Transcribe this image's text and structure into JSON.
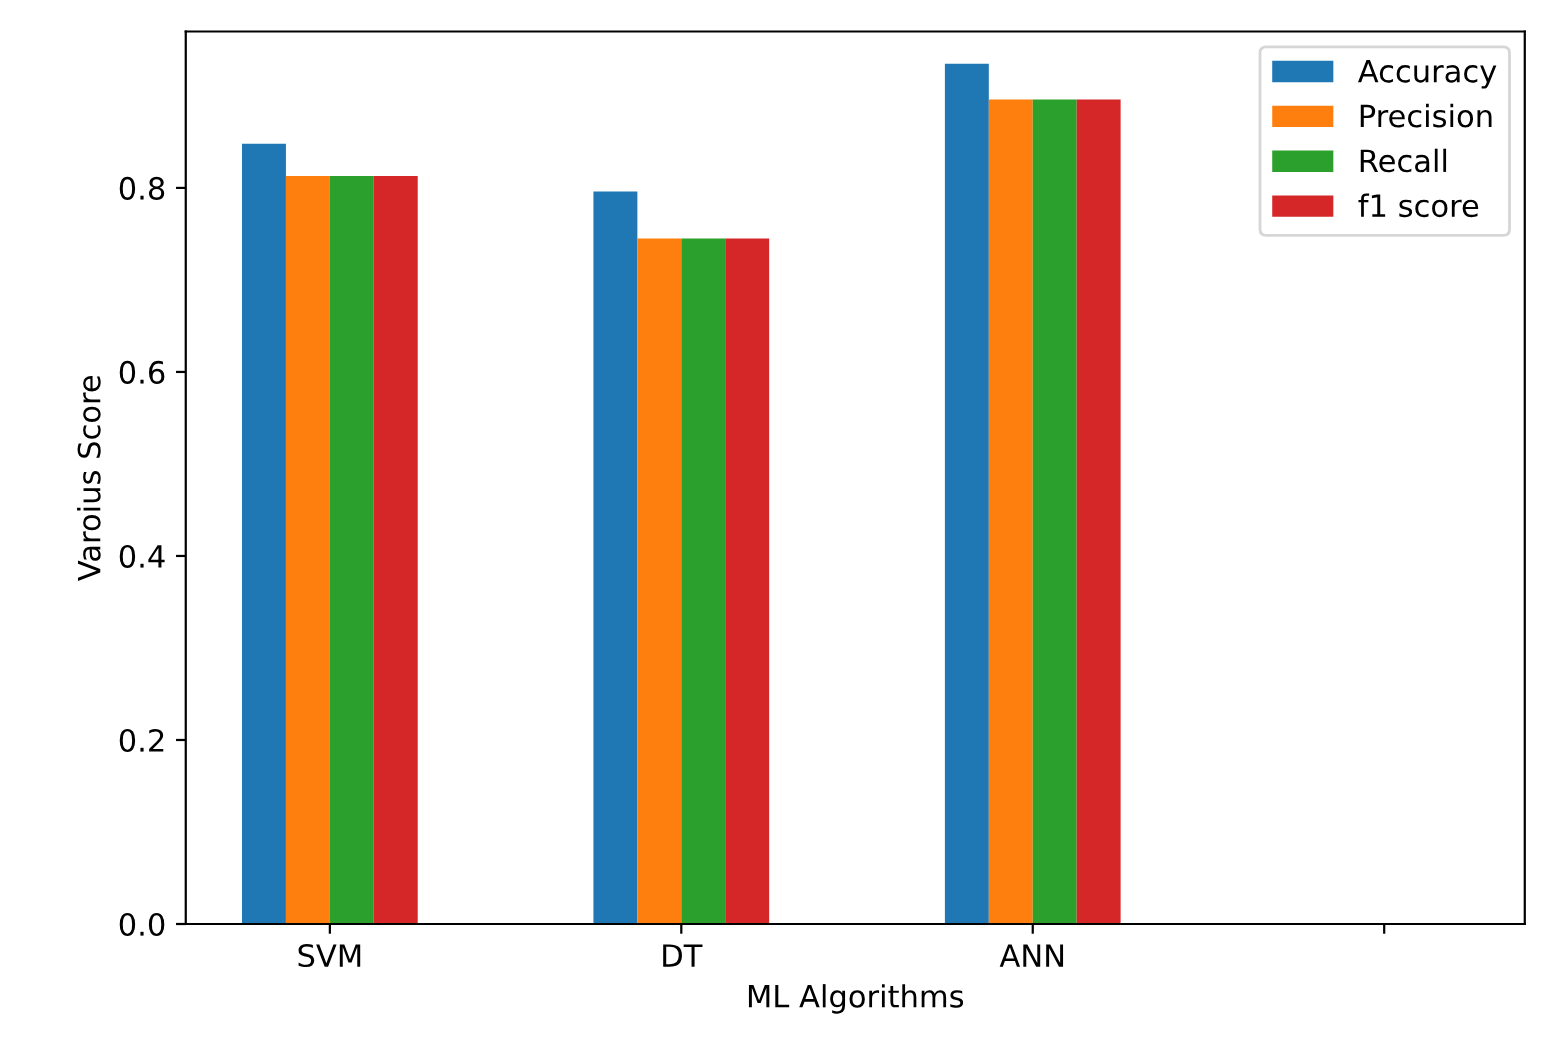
{
  "chart_data": {
    "type": "bar",
    "xlabel": "ML Algorithms",
    "ylabel": "Varoius Score",
    "categories": [
      "SVM",
      "DT",
      "ANN",
      null
    ],
    "series": [
      {
        "name": "Accuracy",
        "color": "#1f77b4",
        "values": [
          0.848,
          0.796,
          0.935,
          null
        ]
      },
      {
        "name": "Precision",
        "color": "#ff7f0e",
        "values": [
          0.813,
          0.745,
          0.896,
          null
        ]
      },
      {
        "name": "Recall",
        "color": "#2ca02c",
        "values": [
          0.813,
          0.745,
          0.896,
          null
        ]
      },
      {
        "name": "f1 score",
        "color": "#d62728",
        "values": [
          0.813,
          0.745,
          0.896,
          null
        ]
      }
    ],
    "ylim": [
      0,
      0.97
    ],
    "yticks": [
      {
        "value": 0,
        "label": "0.0"
      },
      0.2,
      0.4,
      0.6,
      0.8
    ],
    "legend": "top right",
    "grid": false
  }
}
